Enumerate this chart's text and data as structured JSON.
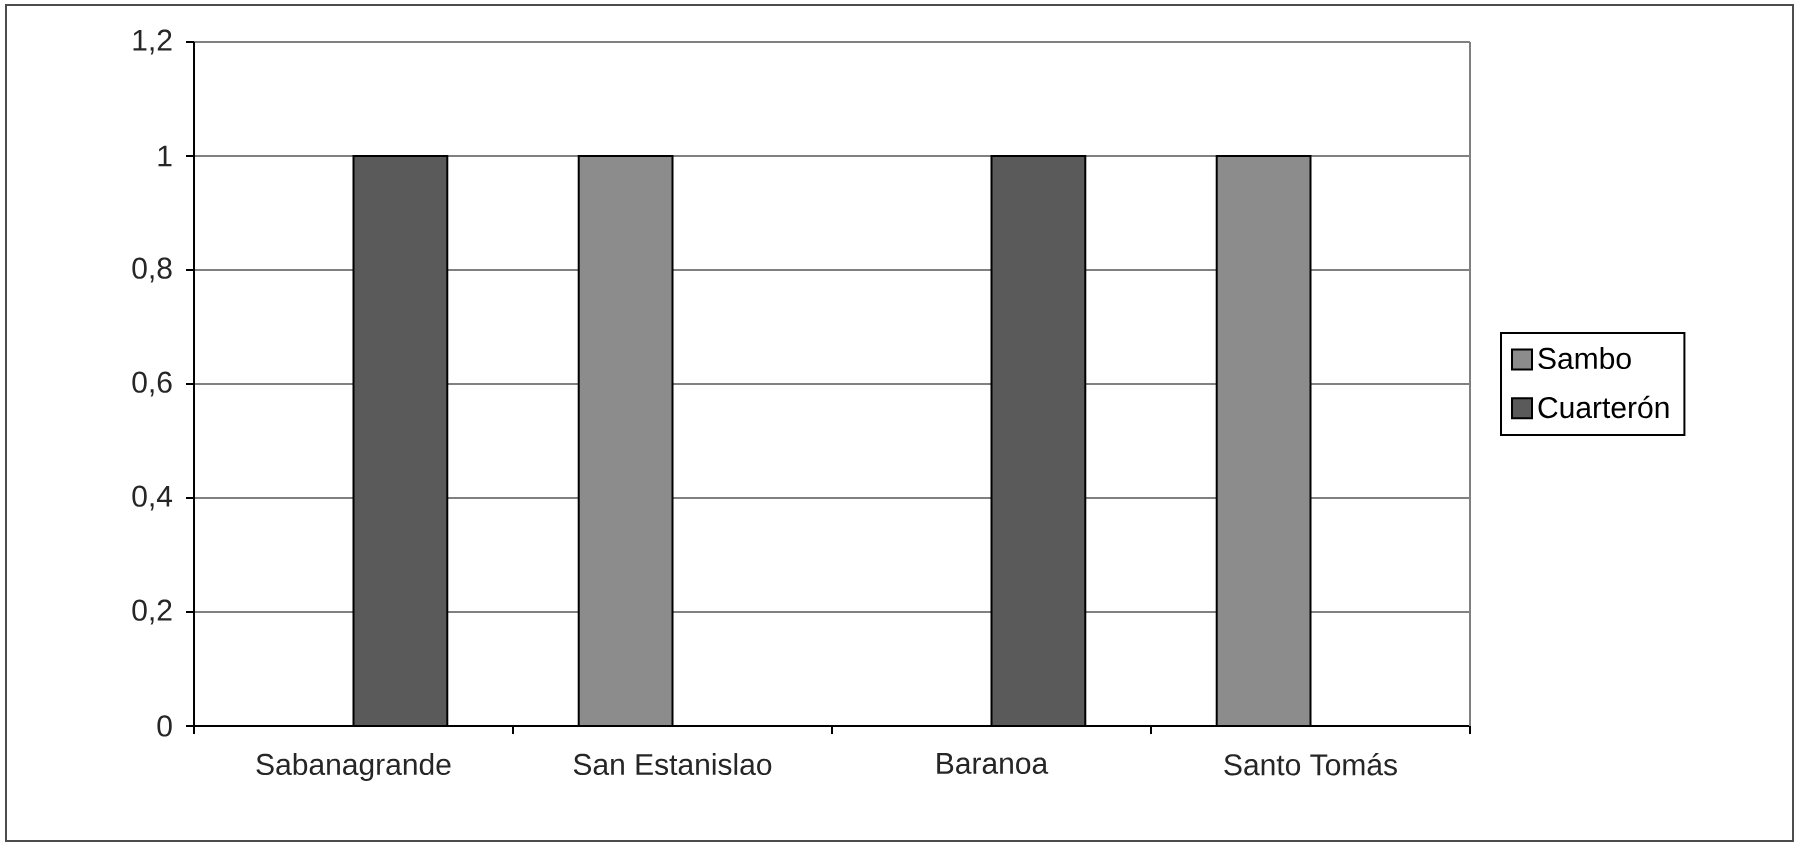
{
  "chart_data": {
    "type": "bar",
    "categories": [
      "Sabanagrande",
      "San Estanislao",
      "Baranoa",
      "Santo Tomás"
    ],
    "series": [
      {
        "name": "Sambo",
        "color": "#8c8c8c",
        "values": [
          null,
          1,
          null,
          1
        ]
      },
      {
        "name": "Cuarterón",
        "color": "#5a5a5a",
        "values": [
          1,
          null,
          1,
          null
        ]
      }
    ],
    "ylim": [
      0,
      1.2
    ],
    "yticks": [
      0,
      {
        "value": 0.2,
        "label": "0,2"
      },
      {
        "value": 0.4,
        "label": "0,4"
      },
      {
        "value": 0.6,
        "label": "0,6"
      },
      {
        "value": 0.8,
        "label": "0,8"
      },
      1,
      {
        "value": 1.2,
        "label": "1,2"
      }
    ],
    "grid": "y",
    "legend": "right"
  }
}
